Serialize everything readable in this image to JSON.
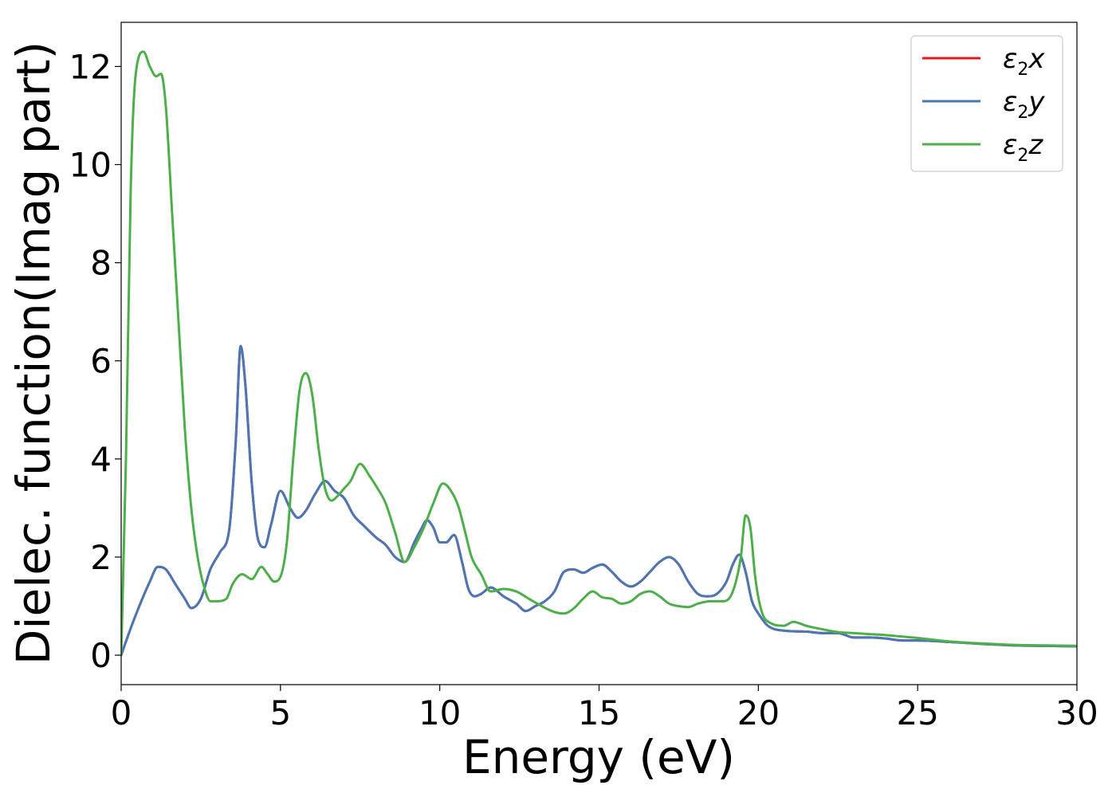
{
  "chart_data": {
    "type": "line",
    "xlabel": "Energy (eV)",
    "ylabel": "Dielec. function(Imag part)",
    "xlim": [
      0,
      30
    ],
    "ylim": [
      -0.6,
      12.9
    ],
    "xticks": [
      0,
      5,
      10,
      15,
      20,
      25,
      30
    ],
    "xtick_labels": [
      "0",
      "5",
      "10",
      "15",
      "20",
      "25",
      "30"
    ],
    "yticks": [
      0,
      2,
      4,
      6,
      8,
      10,
      12
    ],
    "ytick_labels": [
      "0",
      "2",
      "4",
      "6",
      "8",
      "10",
      "12"
    ],
    "grid": false,
    "legend_position": "top-right",
    "series": [
      {
        "name": "ε2x",
        "legend_symbol": "ε",
        "legend_subscript": "2",
        "legend_suffix": "x",
        "color": "#e41a1c",
        "x": [
          0,
          0.3,
          0.6,
          0.9,
          1.15,
          1.4,
          1.7,
          2.0,
          2.2,
          2.5,
          2.8,
          3.1,
          3.4,
          3.6,
          3.75,
          3.9,
          4.1,
          4.3,
          4.5,
          4.7,
          5.0,
          5.3,
          5.55,
          5.8,
          6.1,
          6.4,
          6.7,
          7.0,
          7.3,
          7.6,
          8.0,
          8.3,
          8.6,
          8.9,
          9.2,
          9.4,
          9.6,
          9.8,
          10.0,
          10.2,
          10.45,
          10.7,
          10.9,
          11.1,
          11.3,
          11.6,
          12.0,
          12.4,
          12.7,
          13.0,
          13.3,
          13.6,
          13.9,
          14.2,
          14.5,
          14.8,
          15.1,
          15.4,
          15.7,
          16.0,
          16.3,
          16.6,
          16.9,
          17.2,
          17.5,
          17.8,
          18.1,
          18.4,
          18.7,
          19.0,
          19.2,
          19.4,
          19.6,
          19.8,
          20.0,
          20.3,
          20.8,
          21.5,
          22.0,
          22.5,
          23.0,
          23.5,
          24.0,
          24.5,
          25.0,
          26.0,
          27.0,
          28.0,
          29.0,
          30.0
        ],
        "y": [
          0,
          0.55,
          1.05,
          1.5,
          1.8,
          1.75,
          1.45,
          1.15,
          0.96,
          1.15,
          1.75,
          2.1,
          2.6,
          4.4,
          6.3,
          5.5,
          3.5,
          2.35,
          2.2,
          2.65,
          3.35,
          3.0,
          2.8,
          2.95,
          3.3,
          3.55,
          3.35,
          3.2,
          2.85,
          2.65,
          2.4,
          2.25,
          2.0,
          1.9,
          2.3,
          2.55,
          2.75,
          2.6,
          2.3,
          2.3,
          2.45,
          1.9,
          1.35,
          1.2,
          1.25,
          1.38,
          1.2,
          1.05,
          0.9,
          1.0,
          1.1,
          1.3,
          1.7,
          1.75,
          1.68,
          1.78,
          1.85,
          1.7,
          1.5,
          1.4,
          1.5,
          1.7,
          1.9,
          2.0,
          1.85,
          1.5,
          1.25,
          1.2,
          1.25,
          1.5,
          1.85,
          2.05,
          1.7,
          1.1,
          0.85,
          0.6,
          0.5,
          0.48,
          0.45,
          0.45,
          0.36,
          0.36,
          0.34,
          0.3,
          0.3,
          0.27,
          0.23,
          0.2,
          0.19,
          0.18
        ]
      },
      {
        "name": "ε2y",
        "legend_symbol": "ε",
        "legend_subscript": "2",
        "legend_suffix": "y",
        "color": "#4a78b4",
        "x": [
          0,
          0.3,
          0.6,
          0.9,
          1.15,
          1.4,
          1.7,
          2.0,
          2.2,
          2.5,
          2.8,
          3.1,
          3.4,
          3.6,
          3.75,
          3.9,
          4.1,
          4.3,
          4.5,
          4.7,
          5.0,
          5.3,
          5.55,
          5.8,
          6.1,
          6.4,
          6.7,
          7.0,
          7.3,
          7.6,
          8.0,
          8.3,
          8.6,
          8.9,
          9.2,
          9.4,
          9.6,
          9.8,
          10.0,
          10.2,
          10.45,
          10.7,
          10.9,
          11.1,
          11.3,
          11.6,
          12.0,
          12.4,
          12.7,
          13.0,
          13.3,
          13.6,
          13.9,
          14.2,
          14.5,
          14.8,
          15.1,
          15.4,
          15.7,
          16.0,
          16.3,
          16.6,
          16.9,
          17.2,
          17.5,
          17.8,
          18.1,
          18.4,
          18.7,
          19.0,
          19.2,
          19.4,
          19.6,
          19.8,
          20.0,
          20.3,
          20.8,
          21.5,
          22.0,
          22.5,
          23.0,
          23.5,
          24.0,
          24.5,
          25.0,
          26.0,
          27.0,
          28.0,
          29.0,
          30.0
        ],
        "y": [
          0,
          0.55,
          1.05,
          1.5,
          1.8,
          1.75,
          1.45,
          1.15,
          0.96,
          1.15,
          1.75,
          2.1,
          2.6,
          4.4,
          6.3,
          5.5,
          3.5,
          2.35,
          2.2,
          2.65,
          3.35,
          3.0,
          2.8,
          2.95,
          3.3,
          3.55,
          3.35,
          3.2,
          2.85,
          2.65,
          2.4,
          2.25,
          2.0,
          1.9,
          2.3,
          2.55,
          2.75,
          2.6,
          2.3,
          2.3,
          2.45,
          1.9,
          1.35,
          1.2,
          1.25,
          1.38,
          1.2,
          1.05,
          0.9,
          1.0,
          1.1,
          1.3,
          1.7,
          1.75,
          1.68,
          1.78,
          1.85,
          1.7,
          1.5,
          1.4,
          1.5,
          1.7,
          1.9,
          2.0,
          1.85,
          1.5,
          1.25,
          1.2,
          1.25,
          1.5,
          1.85,
          2.05,
          1.7,
          1.1,
          0.85,
          0.6,
          0.5,
          0.48,
          0.45,
          0.45,
          0.36,
          0.36,
          0.34,
          0.3,
          0.3,
          0.27,
          0.23,
          0.2,
          0.19,
          0.18
        ]
      },
      {
        "name": "ε2z",
        "legend_symbol": "ε",
        "legend_subscript": "2",
        "legend_suffix": "z",
        "color": "#4daf4a",
        "x": [
          0,
          0.15,
          0.3,
          0.45,
          0.7,
          0.9,
          1.1,
          1.25,
          1.4,
          1.6,
          1.8,
          2.0,
          2.2,
          2.4,
          2.6,
          2.8,
          3.0,
          3.3,
          3.5,
          3.8,
          4.1,
          4.4,
          4.6,
          4.8,
          5.0,
          5.2,
          5.4,
          5.6,
          5.8,
          6.0,
          6.2,
          6.4,
          6.6,
          6.8,
          7.0,
          7.2,
          7.5,
          7.8,
          8.0,
          8.3,
          8.6,
          8.9,
          9.2,
          9.5,
          9.8,
          10.1,
          10.4,
          10.6,
          10.8,
          11.0,
          11.3,
          11.6,
          12.0,
          12.4,
          12.8,
          13.2,
          13.6,
          13.9,
          14.2,
          14.5,
          14.8,
          15.1,
          15.4,
          15.7,
          16.0,
          16.3,
          16.6,
          16.9,
          17.2,
          17.5,
          17.8,
          18.1,
          18.5,
          18.9,
          19.2,
          19.45,
          19.6,
          19.75,
          19.9,
          20.1,
          20.4,
          20.8,
          21.1,
          21.5,
          22.0,
          22.5,
          23.0,
          23.5,
          24.0,
          24.5,
          25.0,
          26.0,
          27.0,
          28.0,
          29.0,
          30.0
        ],
        "y": [
          0,
          4.0,
          9.5,
          11.8,
          12.3,
          12.0,
          11.8,
          11.85,
          11.2,
          9.0,
          6.8,
          4.6,
          3.0,
          2.0,
          1.4,
          1.1,
          1.1,
          1.15,
          1.45,
          1.65,
          1.55,
          1.8,
          1.65,
          1.5,
          1.6,
          2.3,
          4.0,
          5.4,
          5.75,
          5.3,
          4.2,
          3.4,
          3.15,
          3.25,
          3.4,
          3.55,
          3.9,
          3.65,
          3.45,
          3.1,
          2.5,
          1.9,
          2.2,
          2.6,
          3.1,
          3.5,
          3.3,
          3.0,
          2.5,
          2.0,
          1.65,
          1.3,
          1.35,
          1.3,
          1.15,
          1.0,
          0.88,
          0.85,
          0.95,
          1.15,
          1.3,
          1.18,
          1.15,
          1.05,
          1.1,
          1.25,
          1.3,
          1.2,
          1.05,
          1.0,
          0.98,
          1.05,
          1.1,
          1.1,
          1.3,
          2.0,
          2.85,
          2.6,
          1.6,
          0.9,
          0.65,
          0.6,
          0.68,
          0.6,
          0.53,
          0.47,
          0.45,
          0.43,
          0.41,
          0.38,
          0.35,
          0.28,
          0.24,
          0.21,
          0.2,
          0.19
        ]
      }
    ]
  }
}
